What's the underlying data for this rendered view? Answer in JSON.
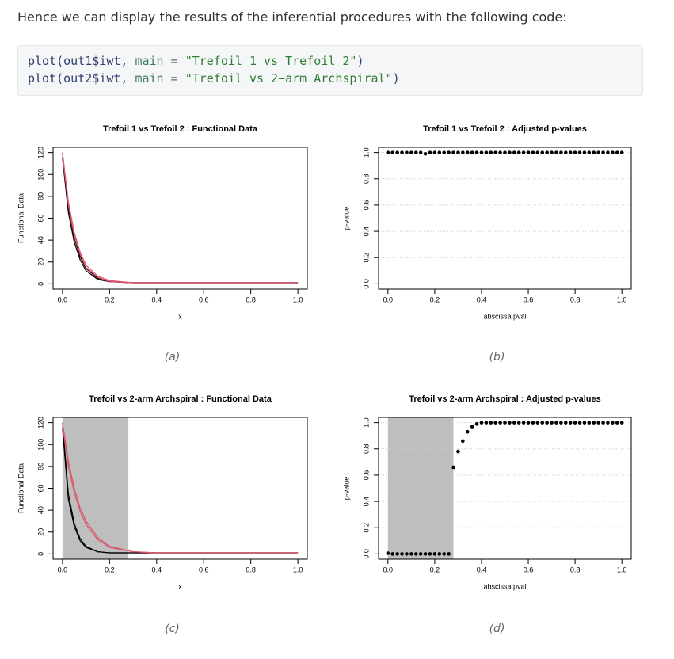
{
  "intro": "Hence we can display the results of the inferential procedures with the following code:",
  "code": [
    [
      "plot(out1$iwt, ",
      "main",
      " = ",
      "\"Trefoil 1 vs Trefoil 2\"",
      ")"
    ],
    [
      "plot(out2$iwt, ",
      "main",
      " = ",
      "\"Trefoil vs 2−arm Archspiral\"",
      ")"
    ]
  ],
  "captions": [
    "(a)",
    "(b)",
    "(c)",
    "(d)"
  ],
  "chart_data": [
    {
      "type": "line",
      "title": "Trefoil 1 vs Trefoil 2 : Functional Data",
      "xlabel": "x",
      "ylabel": "Functional Data",
      "x": [
        0,
        0.025,
        0.05,
        0.075,
        0.1,
        0.15,
        0.2,
        0.3,
        0.4,
        0.6,
        0.8,
        1
      ],
      "series": [
        {
          "color": "#000000",
          "values": [
            120,
            70,
            42,
            25,
            14,
            5,
            2,
            1,
            1,
            1,
            1,
            1
          ]
        },
        {
          "color": "#000000",
          "values": [
            115,
            65,
            38,
            22,
            12,
            4,
            2,
            1,
            1,
            1,
            1,
            1
          ]
        },
        {
          "color": "#df536b",
          "values": [
            118,
            72,
            44,
            27,
            15,
            6,
            2,
            1,
            1,
            1,
            1,
            1
          ]
        },
        {
          "color": "#df536b",
          "values": [
            120,
            75,
            47,
            29,
            17,
            7,
            3,
            1,
            1,
            1,
            1,
            1
          ]
        }
      ],
      "xlim": [
        -0.04,
        1.04
      ],
      "ylim": [
        -4.8,
        124.8
      ],
      "xticks": [
        {
          "value": 0,
          "label": "0.0"
        },
        0.2,
        0.4,
        0.6,
        0.8,
        {
          "value": 1,
          "label": "1.0"
        }
      ],
      "yticks": [
        0,
        20,
        40,
        60,
        80,
        100,
        120
      ],
      "grid": false
    },
    {
      "type": "scatter",
      "title": "Trefoil 1 vs Trefoil 2 : Adjusted p-values",
      "xlabel": "abscissa.pval",
      "ylabel": "p-value",
      "x": [
        0,
        0.02,
        0.04,
        0.06,
        0.08,
        0.1,
        0.12,
        0.14,
        0.16,
        0.18,
        0.2,
        0.22,
        0.24,
        0.26,
        0.28,
        0.3,
        0.32,
        0.34,
        0.36,
        0.38,
        0.4,
        0.42,
        0.44,
        0.46,
        0.48,
        0.5,
        0.52,
        0.54,
        0.56,
        0.58,
        0.6,
        0.62,
        0.64,
        0.66,
        0.68,
        0.7,
        0.72,
        0.74,
        0.76,
        0.78,
        0.8,
        0.82,
        0.84,
        0.86,
        0.88,
        0.9,
        0.92,
        0.94,
        0.96,
        0.98,
        1
      ],
      "values": [
        1,
        1,
        1,
        1,
        1,
        1,
        1,
        1,
        0.99,
        1,
        1,
        1,
        1,
        1,
        1,
        1,
        1,
        1,
        1,
        1,
        1,
        1,
        1,
        1,
        1,
        1,
        1,
        1,
        1,
        1,
        1,
        1,
        1,
        1,
        1,
        1,
        1,
        1,
        1,
        1,
        1,
        1,
        1,
        1,
        1,
        1,
        1,
        1,
        1,
        1,
        1
      ],
      "color": "#000000",
      "xlim": [
        -0.04,
        1.04
      ],
      "ylim": [
        -0.04,
        1.04
      ],
      "xticks": [
        {
          "value": 0,
          "label": "0.0"
        },
        0.2,
        0.4,
        0.6,
        0.8,
        {
          "value": 1,
          "label": "1.0"
        }
      ],
      "yticks": [
        {
          "value": 0,
          "label": "0.0"
        },
        0.2,
        0.4,
        0.6,
        0.8,
        {
          "value": 1,
          "label": "1.0"
        }
      ],
      "grid": true
    },
    {
      "type": "line",
      "title": "Trefoil vs 2-arm Archspiral : Functional Data",
      "xlabel": "x",
      "ylabel": "Functional Data",
      "shade": [
        0,
        0.28
      ],
      "shade_color": "#bebebe",
      "x": [
        0,
        0.025,
        0.05,
        0.075,
        0.1,
        0.15,
        0.2,
        0.3,
        0.4,
        0.6,
        0.8,
        1
      ],
      "series": [
        {
          "color": "#000000",
          "values": [
            120,
            55,
            28,
            14,
            7,
            2,
            1,
            1,
            1,
            1,
            1,
            1
          ]
        },
        {
          "color": "#000000",
          "values": [
            115,
            50,
            25,
            12,
            6,
            2,
            1,
            1,
            1,
            1,
            1,
            1
          ]
        },
        {
          "color": "#df536b",
          "values": [
            120,
            85,
            60,
            42,
            30,
            15,
            7,
            2,
            1,
            1,
            1,
            1
          ]
        },
        {
          "color": "#df536b",
          "values": [
            118,
            80,
            56,
            39,
            27,
            13,
            6,
            2,
            1,
            1,
            1,
            1
          ]
        }
      ],
      "xlim": [
        -0.04,
        1.04
      ],
      "ylim": [
        -4.8,
        124.8
      ],
      "xticks": [
        {
          "value": 0,
          "label": "0.0"
        },
        0.2,
        0.4,
        0.6,
        0.8,
        {
          "value": 1,
          "label": "1.0"
        }
      ],
      "yticks": [
        0,
        20,
        40,
        60,
        80,
        100,
        120
      ],
      "grid": false
    },
    {
      "type": "scatter",
      "title": "Trefoil vs 2-arm Archspiral : Adjusted p-values",
      "xlabel": "abscissa.pval",
      "ylabel": "p-value",
      "shade": [
        0,
        0.28
      ],
      "shade_color": "#bebebe",
      "x": [
        0,
        0.02,
        0.04,
        0.06,
        0.08,
        0.1,
        0.12,
        0.14,
        0.16,
        0.18,
        0.2,
        0.22,
        0.24,
        0.26,
        0.28,
        0.3,
        0.32,
        0.34,
        0.36,
        0.38,
        0.4,
        0.42,
        0.44,
        0.46,
        0.48,
        0.5,
        0.52,
        0.54,
        0.56,
        0.58,
        0.6,
        0.62,
        0.64,
        0.66,
        0.68,
        0.7,
        0.72,
        0.74,
        0.76,
        0.78,
        0.8,
        0.82,
        0.84,
        0.86,
        0.88,
        0.9,
        0.92,
        0.94,
        0.96,
        0.98,
        1
      ],
      "values": [
        0.005,
        0,
        0,
        0,
        0,
        0,
        0,
        0,
        0,
        0,
        0,
        0,
        0,
        0,
        0.66,
        0.78,
        0.86,
        0.93,
        0.97,
        0.99,
        1,
        1,
        1,
        1,
        1,
        1,
        1,
        1,
        1,
        1,
        1,
        1,
        1,
        1,
        1,
        1,
        1,
        1,
        1,
        1,
        1,
        1,
        1,
        1,
        1,
        1,
        1,
        1,
        1,
        1,
        1
      ],
      "color": "#000000",
      "xlim": [
        -0.04,
        1.04
      ],
      "ylim": [
        -0.04,
        1.04
      ],
      "xticks": [
        {
          "value": 0,
          "label": "0.0"
        },
        0.2,
        0.4,
        0.6,
        0.8,
        {
          "value": 1,
          "label": "1.0"
        }
      ],
      "yticks": [
        {
          "value": 0,
          "label": "0.0"
        },
        0.2,
        0.4,
        0.6,
        0.8,
        {
          "value": 1,
          "label": "1.0"
        }
      ],
      "grid": true
    }
  ]
}
